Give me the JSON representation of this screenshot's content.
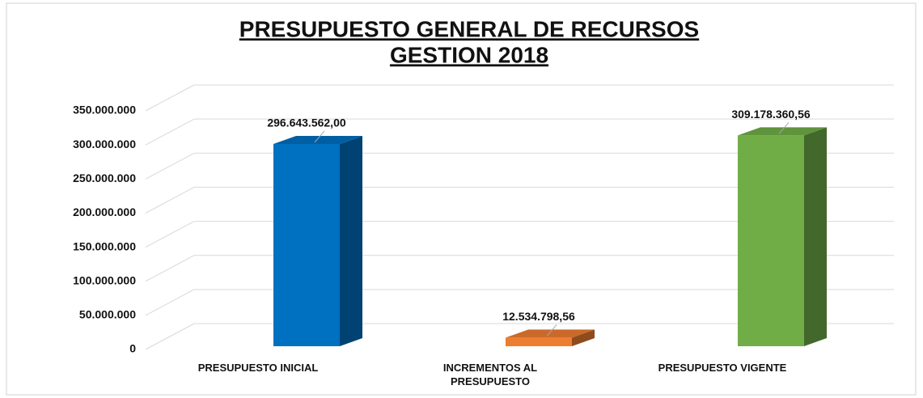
{
  "chart_data": {
    "type": "bar3d",
    "title": [
      "PRESUPUESTO  GENERAL DE RECURSOS",
      "GESTION 2018"
    ],
    "categories": [
      "PRESUPUESTO INICIAL",
      "INCREMENTOS AL PRESUPUESTO",
      "PRESUPUESTO VIGENTE"
    ],
    "values": [
      296643562.0,
      12534798.56,
      309178360.56
    ],
    "value_labels": [
      "296.643.562,00",
      "12.534.798,56",
      "309.178.360,56"
    ],
    "colors": [
      "#0070c0",
      "#ed7d31",
      "#70ad47"
    ],
    "ylim": [
      0,
      350000000
    ],
    "yticks": [
      0,
      {
        "value": 50000000,
        "label": "50.000.000"
      },
      {
        "value": 100000000,
        "label": "100.000.000"
      },
      {
        "value": 150000000,
        "label": "150.000.000"
      },
      {
        "value": 200000000,
        "label": "200.000.000"
      },
      {
        "value": 250000000,
        "label": "250.000.000"
      },
      {
        "value": 300000000,
        "label": "300.000.000"
      },
      {
        "value": 350000000,
        "label": "350.000.000"
      }
    ],
    "grid": true
  }
}
